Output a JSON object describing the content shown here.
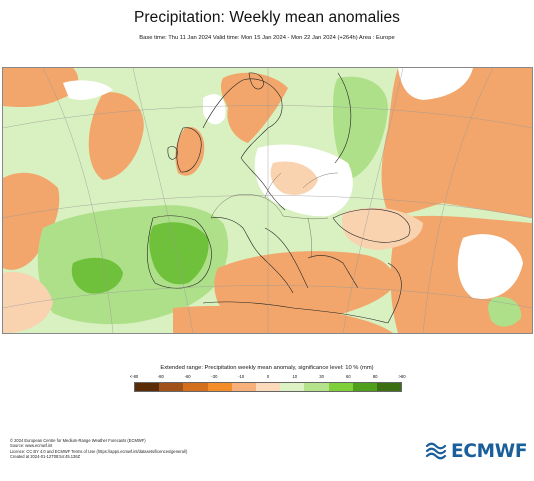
{
  "header": {
    "title": "Precipitation: Weekly mean anomalies",
    "subtitle": "Base time: Thu 11 Jan 2024 Valid time: Mon 15 Jan 2024 - Mon 22 Jan 2024 (+264h) Area : Europe"
  },
  "map": {
    "region": "Europe",
    "anomaly_colors": {
      "strong_dry": "#e8843c",
      "dry": "#f2a66b",
      "slight_dry": "#f9d2b0",
      "neutral": "#ffffff",
      "slight_wet": "#d9f0c0",
      "wet": "#aee08a",
      "very_wet": "#6fc13b"
    }
  },
  "legend": {
    "title": "Extended range: Precipitation weekly mean anomaly, significance level: 10 % (mm)",
    "ticks": [
      "<-80",
      "-80",
      "-60",
      "-30",
      "-10",
      "0",
      "10",
      "30",
      "60",
      "80",
      ">80"
    ],
    "colors": [
      "#5a2c06",
      "#a0521a",
      "#d46f1e",
      "#f28d2a",
      "#f7b07a",
      "#fbd9bb",
      "#dcf2c4",
      "#b4e38c",
      "#7fcf3b",
      "#4f9e1c",
      "#3c6f12"
    ]
  },
  "footer": {
    "lines": [
      "© 2024 European Centre for Medium-Range Weather Forecasts (ECMWF)",
      "Source: www.ecmwf.int",
      "Licence: CC BY 4.0 and ECMWF Terms of Use (https://apps.ecmwf.int/datasets/licences/general/)",
      "Created at 2024-01-12T08:54:45.136Z"
    ]
  },
  "logo": {
    "text": "ECMWF",
    "color": "#1a5e9a"
  }
}
